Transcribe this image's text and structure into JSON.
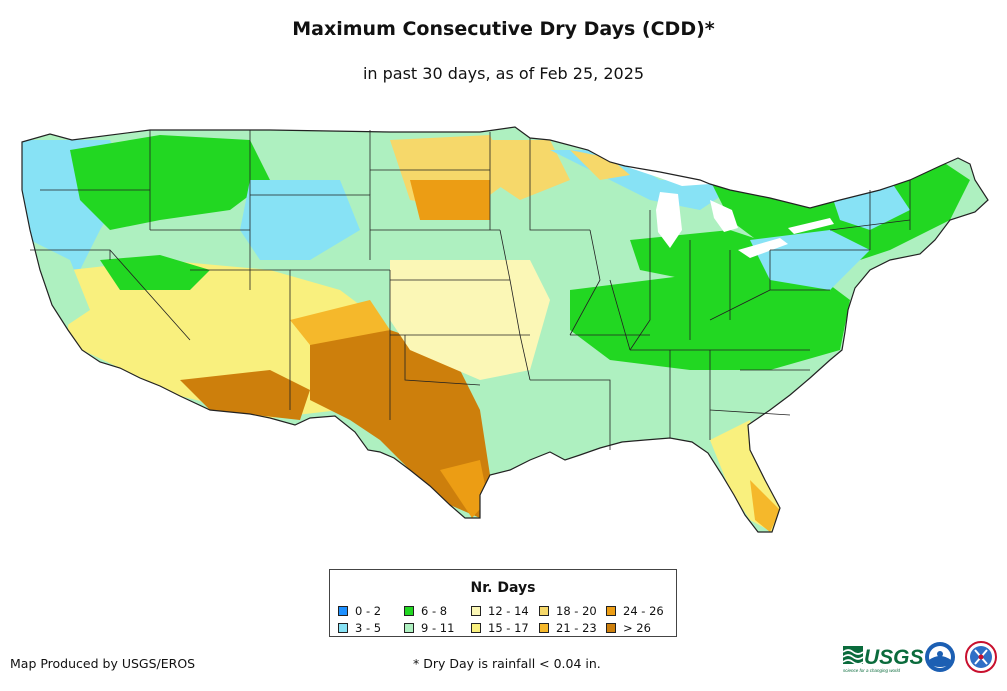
{
  "title": "Maximum Consecutive Dry Days (CDD)*",
  "subtitle": "in past 30 days, as of Feb 25, 2025",
  "legend": {
    "title": "Nr. Days",
    "items": [
      {
        "label": "0 - 2",
        "color": "#1e90ff"
      },
      {
        "label": "3 - 5",
        "color": "#87e2f5"
      },
      {
        "label": "6 - 8",
        "color": "#22d722"
      },
      {
        "label": "9 - 11",
        "color": "#aef0c0"
      },
      {
        "label": "12 - 14",
        "color": "#fbf7b6"
      },
      {
        "label": "15 - 17",
        "color": "#f9f07e"
      },
      {
        "label": "18 - 20",
        "color": "#f6d86a"
      },
      {
        "label": "21 - 23",
        "color": "#f5b82b"
      },
      {
        "label": "24 - 26",
        "color": "#ec9d14"
      },
      {
        "label": "> 26",
        "color": "#cd7f0c"
      }
    ]
  },
  "footer": {
    "credit": "Map Produced by USGS/EROS",
    "note": "* Dry Day is rainfall < 0.04 in."
  },
  "logos": {
    "usgs_text": "USGS",
    "usgs_tagline": "science for a changing world"
  }
}
